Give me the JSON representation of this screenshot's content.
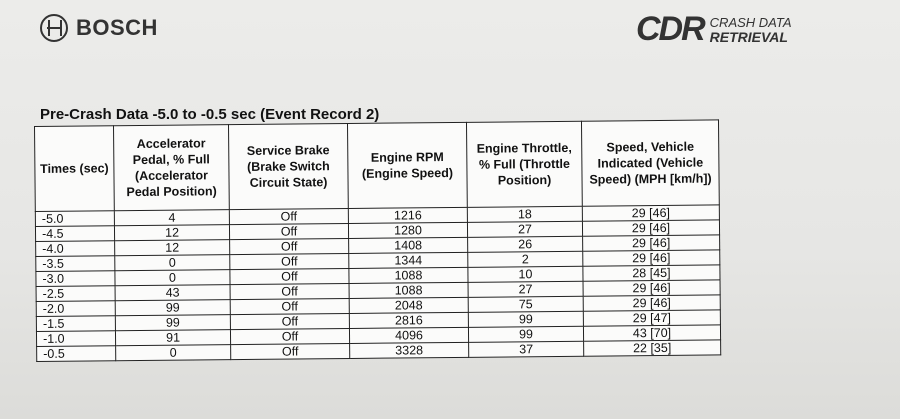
{
  "brand_left": "BOSCH",
  "brand_right": {
    "mark": "CDR",
    "line1": "CRASH DATA",
    "line2": "RETRIEVAL"
  },
  "title": "Pre-Crash Data -5.0 to -0.5 sec (Event Record 2)",
  "headers": [
    "Times (sec)",
    "Accelerator Pedal, % Full (Accelerator Pedal Position)",
    "Service Brake (Brake Switch Circuit State)",
    "Engine RPM (Engine Speed)",
    "Engine Throttle, % Full (Throttle Position)",
    "Speed, Vehicle Indicated (Vehicle Speed) (MPH [km/h])"
  ],
  "rows": [
    [
      "-5.0",
      "4",
      "Off",
      "1216",
      "18",
      "29 [46]"
    ],
    [
      "-4.5",
      "12",
      "Off",
      "1280",
      "27",
      "29 [46]"
    ],
    [
      "-4.0",
      "12",
      "Off",
      "1408",
      "26",
      "29 [46]"
    ],
    [
      "-3.5",
      "0",
      "Off",
      "1344",
      "2",
      "29 [46]"
    ],
    [
      "-3.0",
      "0",
      "Off",
      "1088",
      "10",
      "28 [45]"
    ],
    [
      "-2.5",
      "43",
      "Off",
      "1088",
      "27",
      "29 [46]"
    ],
    [
      "-2.0",
      "99",
      "Off",
      "2048",
      "75",
      "29 [46]"
    ],
    [
      "-1.5",
      "99",
      "Off",
      "2816",
      "99",
      "29 [47]"
    ],
    [
      "-1.0",
      "91",
      "Off",
      "4096",
      "99",
      "43 [70]"
    ],
    [
      "-0.5",
      "0",
      "Off",
      "3328",
      "37",
      "22 [35]"
    ]
  ]
}
